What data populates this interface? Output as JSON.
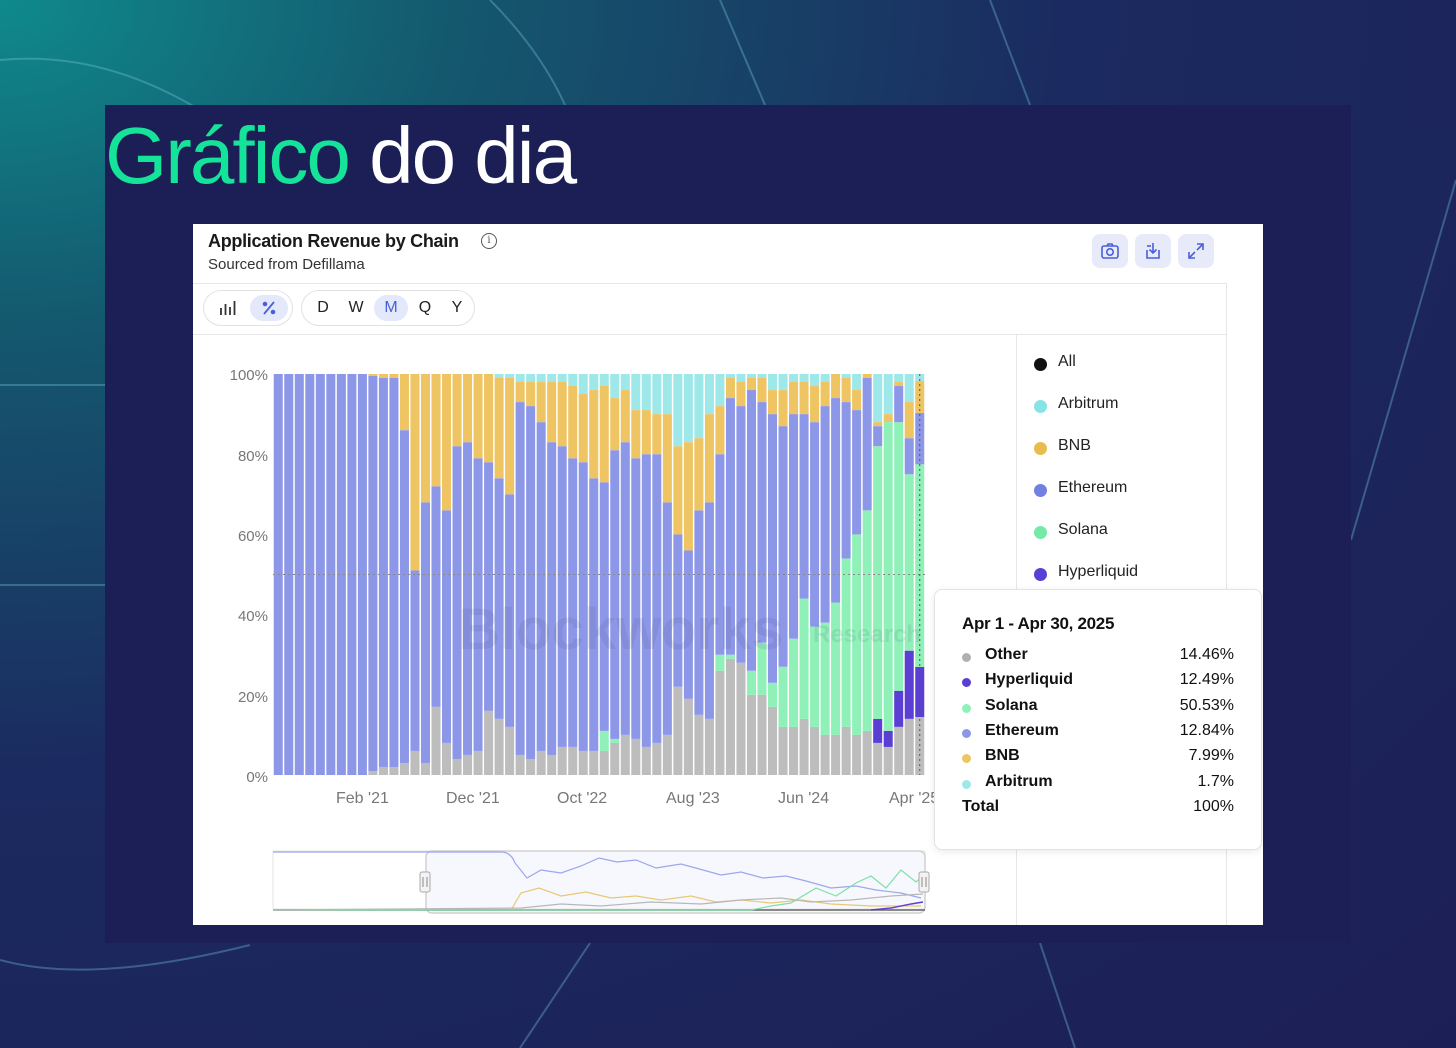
{
  "headline": {
    "highlight": "Gráfico",
    "rest": "do dia"
  },
  "card": {
    "title": "Application Revenue by Chain",
    "subtitle": "Sourced from Defillama",
    "info_icon": "info-circle-icon",
    "tools": [
      "camera-icon",
      "download-icon",
      "expand-icon"
    ],
    "view_toggle": {
      "icons": [
        "bar-chart-icon",
        "percent-icon"
      ],
      "active": "percent-icon"
    },
    "periods": [
      "D",
      "W",
      "M",
      "Q",
      "Y"
    ],
    "active_period": "M",
    "watermark": {
      "main": "Blockworks",
      "sub": "Research"
    }
  },
  "chart_data": {
    "type": "bar",
    "stacked": true,
    "normalized_percent": true,
    "y_ticks": [
      "100%",
      "80%",
      "60%",
      "40%",
      "20%",
      "0%"
    ],
    "ylim": [
      0,
      100
    ],
    "x_tick_labels": [
      "Feb '21",
      "Dec '21",
      "Oct '22",
      "Aug '23",
      "Jun '24",
      "Apr '25"
    ],
    "grid": false,
    "legend_position": "right",
    "legend": [
      "All",
      "Arbitrum",
      "BNB",
      "Ethereum",
      "Solana",
      "Hyperliquid"
    ],
    "colors": {
      "All": "#111111",
      "Other": "#bdbdbd",
      "Hyperliquid": "#5b3fd4",
      "Solana": "#8ff0b8",
      "Ethereum": "#8d97e8",
      "BNB": "#efc463",
      "Arbitrum": "#9fe8ea"
    },
    "series_order_bottom_to_top": [
      "Other",
      "Hyperliquid",
      "Solana",
      "Ethereum",
      "BNB",
      "Arbitrum"
    ],
    "bars": [
      [
        0,
        0,
        0,
        100,
        0,
        0
      ],
      [
        0,
        0,
        0,
        100,
        0,
        0
      ],
      [
        0,
        0,
        0,
        100,
        0,
        0
      ],
      [
        0,
        0,
        0,
        100,
        0,
        0
      ],
      [
        0,
        0,
        0,
        100,
        0,
        0
      ],
      [
        0,
        0,
        0,
        100,
        0,
        0
      ],
      [
        0,
        0,
        0,
        100,
        0,
        0
      ],
      [
        0,
        0,
        0,
        100,
        0,
        0
      ],
      [
        0,
        0,
        0,
        100,
        0,
        0
      ],
      [
        1,
        0,
        0,
        98.5,
        0.5,
        0
      ],
      [
        2,
        0,
        0,
        97,
        1,
        0
      ],
      [
        2,
        0,
        0,
        97,
        1,
        0
      ],
      [
        3,
        0,
        0,
        83,
        14,
        0
      ],
      [
        6,
        0,
        0,
        45,
        49,
        0
      ],
      [
        3,
        0,
        0,
        65,
        32,
        0
      ],
      [
        17,
        0,
        0,
        55,
        28,
        0
      ],
      [
        8,
        0,
        0,
        58,
        34,
        0
      ],
      [
        4,
        0,
        0,
        78,
        18,
        0
      ],
      [
        5,
        0,
        0,
        78,
        17,
        0
      ],
      [
        6,
        0,
        0,
        73,
        21,
        0
      ],
      [
        16,
        0,
        0,
        62,
        22,
        0
      ],
      [
        14,
        0,
        0,
        60,
        25,
        1
      ],
      [
        12,
        0,
        0,
        58,
        29,
        1
      ],
      [
        5,
        0,
        0,
        88,
        5,
        2
      ],
      [
        4,
        0,
        0,
        88,
        6,
        2
      ],
      [
        6,
        0,
        0,
        82,
        10,
        2
      ],
      [
        5,
        0,
        0,
        78,
        15,
        2
      ],
      [
        7,
        0,
        0,
        75,
        16,
        2
      ],
      [
        7,
        0,
        0,
        72,
        18,
        3
      ],
      [
        6,
        0,
        0,
        72,
        17,
        5
      ],
      [
        6,
        0,
        0,
        68,
        22,
        4
      ],
      [
        6,
        0,
        5,
        62,
        24,
        3
      ],
      [
        8,
        0,
        1,
        72,
        13,
        6
      ],
      [
        10,
        0,
        0,
        73,
        13,
        4
      ],
      [
        9,
        0,
        0,
        70,
        12,
        9
      ],
      [
        7,
        0,
        0,
        73,
        11,
        9
      ],
      [
        8,
        0,
        0,
        72,
        10,
        10
      ],
      [
        10,
        0,
        0,
        58,
        22,
        10
      ],
      [
        22,
        0,
        0,
        38,
        22,
        18
      ],
      [
        19,
        0,
        0,
        37,
        27,
        17
      ],
      [
        15,
        0,
        0,
        51,
        18,
        16
      ],
      [
        14,
        0,
        0,
        54,
        22,
        10
      ],
      [
        26,
        0,
        4,
        50,
        12,
        8
      ],
      [
        29,
        0,
        1,
        64,
        5,
        1
      ],
      [
        28,
        0,
        0,
        64,
        6,
        2
      ],
      [
        20,
        0,
        6,
        70,
        3,
        1
      ],
      [
        20,
        0,
        13,
        60,
        6,
        1
      ],
      [
        17,
        0,
        6,
        67,
        6,
        4
      ],
      [
        12,
        0,
        15,
        60,
        9,
        4
      ],
      [
        12,
        0,
        22,
        56,
        8,
        2
      ],
      [
        14,
        0,
        30,
        46,
        8,
        2
      ],
      [
        12,
        0,
        25,
        51,
        9,
        3
      ],
      [
        10,
        0,
        28,
        54,
        6,
        2
      ],
      [
        10,
        0,
        33,
        51,
        6,
        0
      ],
      [
        12,
        0,
        42,
        39,
        6,
        1
      ],
      [
        10,
        0,
        50,
        31,
        5,
        4
      ],
      [
        11,
        0,
        55,
        33,
        1,
        0
      ],
      [
        8,
        6,
        68,
        5,
        1,
        12
      ],
      [
        7,
        4,
        77,
        0,
        2,
        10
      ],
      [
        12,
        9,
        67,
        9,
        1,
        2
      ],
      [
        14,
        17,
        44,
        9,
        9,
        7
      ],
      [
        14.46,
        12.49,
        50.53,
        12.84,
        7.99,
        1.69
      ]
    ],
    "tooltip": {
      "title": "Apr 1 - Apr 30, 2025",
      "rows": [
        {
          "name": "Other",
          "value": "14.46%",
          "color": "#b0b0b0"
        },
        {
          "name": "Hyperliquid",
          "value": "12.49%",
          "color": "#5b3fd4"
        },
        {
          "name": "Solana",
          "value": "50.53%",
          "color": "#8ff0b8"
        },
        {
          "name": "Ethereum",
          "value": "12.84%",
          "color": "#8d97e8"
        },
        {
          "name": "BNB",
          "value": "7.99%",
          "color": "#efc463"
        },
        {
          "name": "Arbitrum",
          "value": "1.7%",
          "color": "#9fe8ea"
        }
      ],
      "total_label": "Total",
      "total_value": "100%"
    }
  }
}
